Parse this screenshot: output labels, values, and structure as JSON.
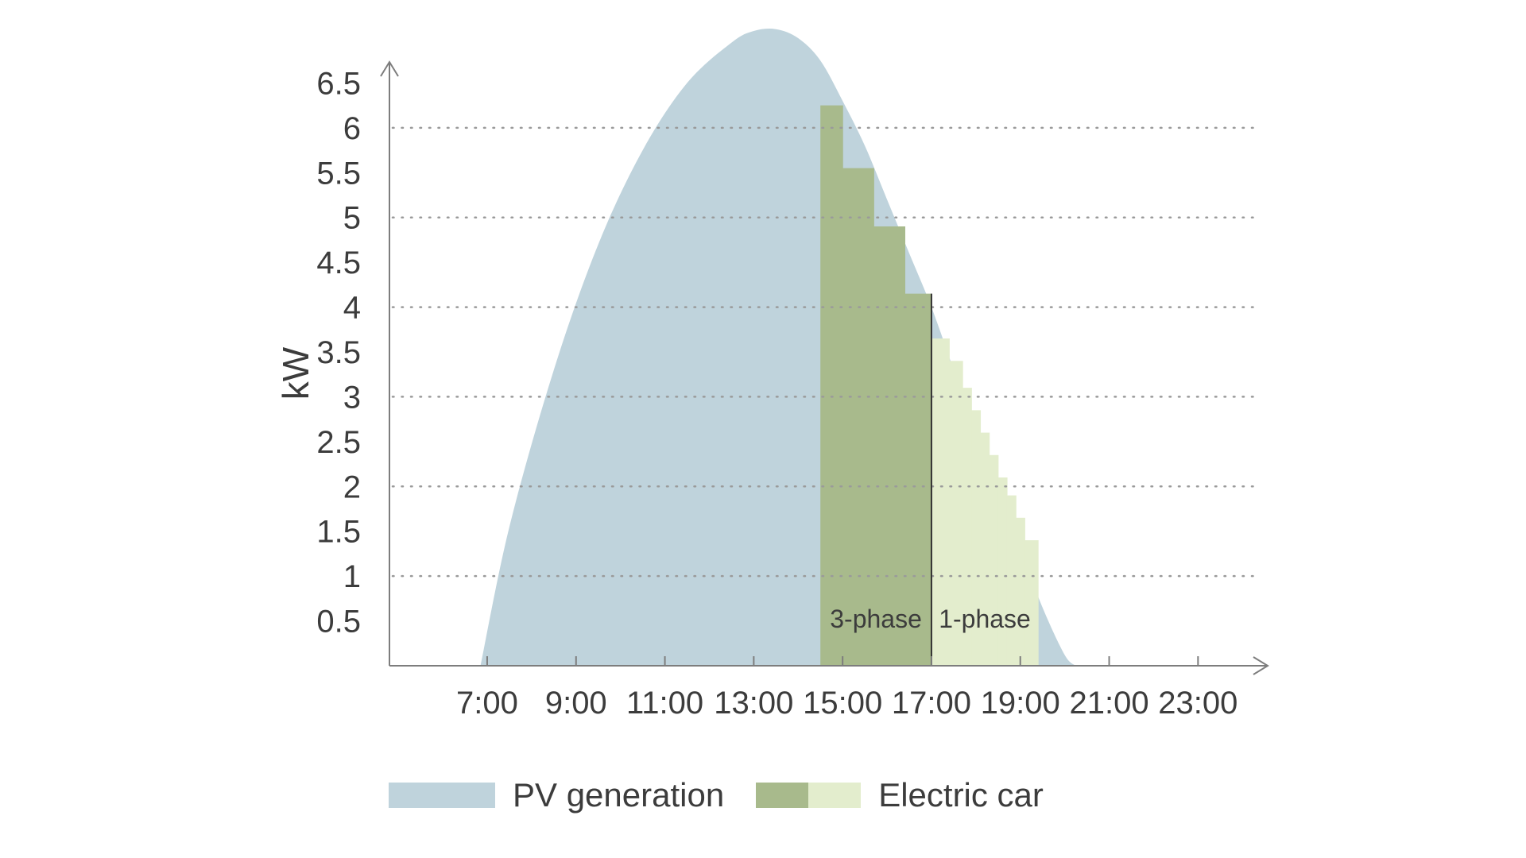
{
  "chart_data": {
    "type": "area",
    "xlabel": "",
    "ylabel": "kW",
    "x_ticks": [
      "7:00",
      "9:00",
      "11:00",
      "13:00",
      "15:00",
      "17:00",
      "19:00",
      "21:00",
      "23:00"
    ],
    "y_ticks": [
      "0.5",
      "1",
      "1.5",
      "2",
      "2.5",
      "3",
      "3.5",
      "4",
      "4.5",
      "5",
      "5.5",
      "6",
      "6.5"
    ],
    "xlim_hours": [
      4.8,
      24.3
    ],
    "ylim": [
      0,
      7.0
    ],
    "dotted_gridlines_at": [
      1,
      2,
      3,
      4,
      5,
      6
    ],
    "series": [
      {
        "name": "PV generation",
        "color": "#bfd3dc",
        "x_hours": [
          6.85,
          7.5,
          8.5,
          9.5,
          10.5,
          11.5,
          12.5,
          13.0,
          13.5,
          14.0,
          14.5,
          15.0,
          15.5,
          16.0,
          16.5,
          17.0,
          17.5,
          18.0,
          18.5,
          19.0,
          19.5,
          20.0,
          20.25
        ],
        "values": [
          0,
          1.55,
          3.3,
          4.7,
          5.75,
          6.5,
          6.95,
          7.08,
          7.1,
          7.0,
          6.75,
          6.3,
          5.8,
          5.2,
          4.6,
          4.0,
          3.3,
          2.6,
          1.95,
          1.3,
          0.65,
          0.12,
          0
        ]
      },
      {
        "name": "Electric car",
        "label": "3-phase",
        "color": "#a8ba8c",
        "steps": [
          {
            "x_start": 14.5,
            "x_end": 15.0,
            "value": 6.25
          },
          {
            "x_start": 15.0,
            "x_end": 15.7,
            "value": 5.55
          },
          {
            "x_start": 15.7,
            "x_end": 16.4,
            "value": 4.9
          },
          {
            "x_start": 16.4,
            "x_end": 17.0,
            "value": 4.15
          }
        ]
      },
      {
        "name": "Electric car",
        "label": "1-phase",
        "color": "#e3edcd",
        "steps": [
          {
            "x_start": 17.0,
            "x_end": 17.4,
            "value": 3.65
          },
          {
            "x_start": 17.4,
            "x_end": 17.7,
            "value": 3.4
          },
          {
            "x_start": 17.7,
            "x_end": 17.9,
            "value": 3.1
          },
          {
            "x_start": 17.9,
            "x_end": 18.1,
            "value": 2.85
          },
          {
            "x_start": 18.1,
            "x_end": 18.3,
            "value": 2.6
          },
          {
            "x_start": 18.3,
            "x_end": 18.5,
            "value": 2.35
          },
          {
            "x_start": 18.5,
            "x_end": 18.7,
            "value": 2.1
          },
          {
            "x_start": 18.7,
            "x_end": 18.9,
            "value": 1.9
          },
          {
            "x_start": 18.9,
            "x_end": 19.1,
            "value": 1.65
          },
          {
            "x_start": 19.1,
            "x_end": 19.4,
            "value": 1.4
          }
        ]
      }
    ],
    "divider_x_hours": 17.0,
    "region_labels": [
      "3-phase",
      "1-phase"
    ],
    "legend": {
      "placement": "bottom-left",
      "items": [
        {
          "label": "PV generation",
          "colors": [
            "#bfd3dc"
          ]
        },
        {
          "label": "Electric car",
          "colors": [
            "#a8ba8c",
            "#e3edcd"
          ]
        }
      ]
    },
    "axis_color": "#7d7d7d"
  }
}
